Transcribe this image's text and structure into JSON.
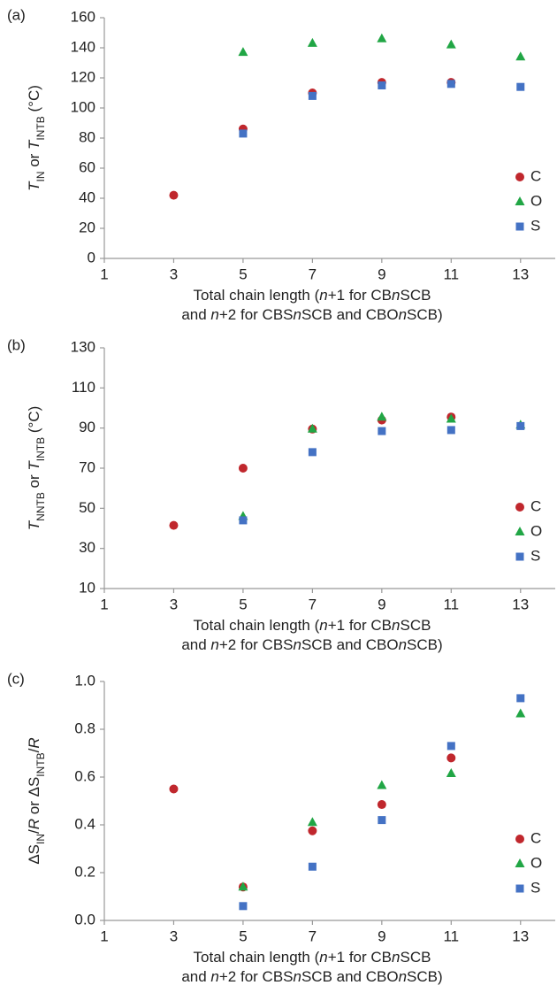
{
  "chart_data": [
    {
      "type": "scatter",
      "panel_label": "(a)",
      "ylabel": [
        {
          "text": "T",
          "style": "italic"
        },
        {
          "text": "IN",
          "style": "sub"
        },
        " or ",
        {
          "text": "T",
          "style": "italic"
        },
        {
          "text": "INTB",
          "style": "sub"
        },
        " (°C)"
      ],
      "xlabel": [
        [
          "Total chain length (",
          {
            "text": "n",
            "style": "italic"
          },
          "+1 for CB",
          {
            "text": "n",
            "style": "italic"
          },
          "SCB"
        ],
        [
          "and ",
          {
            "text": "n",
            "style": "italic"
          },
          "+2 for CBS",
          {
            "text": "n",
            "style": "italic"
          },
          "SCB and CBO",
          {
            "text": "n",
            "style": "italic"
          },
          "SCB)"
        ]
      ],
      "xlim": [
        1,
        14
      ],
      "xticks": [
        1,
        3,
        5,
        7,
        9,
        11,
        13
      ],
      "ylim": [
        0,
        160
      ],
      "yticks": [
        0,
        20,
        40,
        60,
        80,
        100,
        120,
        140,
        160
      ],
      "legend": "lower right",
      "series": [
        {
          "name": "C",
          "color": "#c0272d",
          "marker": "circle",
          "x": [
            3,
            5,
            7,
            9,
            11
          ],
          "values": [
            42,
            86,
            110,
            117,
            117
          ]
        },
        {
          "name": "O",
          "color": "#21a645",
          "marker": "triangle",
          "x": [
            5,
            7,
            9,
            11,
            13
          ],
          "values": [
            137,
            143,
            146,
            142,
            134
          ]
        },
        {
          "name": "S",
          "color": "#4472c4",
          "marker": "square",
          "x": [
            5,
            7,
            9,
            11,
            13
          ],
          "values": [
            83,
            108,
            115,
            116,
            114
          ]
        }
      ]
    },
    {
      "type": "scatter",
      "panel_label": "(b)",
      "ylabel": [
        {
          "text": "T",
          "style": "italic"
        },
        {
          "text": "NNTB",
          "style": "sub"
        },
        " or ",
        {
          "text": "T",
          "style": "italic"
        },
        {
          "text": "INTB",
          "style": "sub"
        },
        " (°C)"
      ],
      "xlabel": [
        [
          "Total chain length (",
          {
            "text": "n",
            "style": "italic"
          },
          "+1 for CB",
          {
            "text": "n",
            "style": "italic"
          },
          "SCB"
        ],
        [
          "and ",
          {
            "text": "n",
            "style": "italic"
          },
          "+2 for CBS",
          {
            "text": "n",
            "style": "italic"
          },
          "SCB and CBO",
          {
            "text": "n",
            "style": "italic"
          },
          "SCB)"
        ]
      ],
      "xlim": [
        1,
        14
      ],
      "xticks": [
        1,
        3,
        5,
        7,
        9,
        11,
        13
      ],
      "ylim": [
        10,
        130
      ],
      "yticks": [
        10,
        30,
        50,
        70,
        90,
        110,
        130
      ],
      "legend": "lower right",
      "series": [
        {
          "name": "C",
          "color": "#c0272d",
          "marker": "circle",
          "x": [
            3,
            5,
            7,
            9,
            11
          ],
          "values": [
            41.5,
            70,
            89.5,
            94,
            95.5
          ]
        },
        {
          "name": "O",
          "color": "#21a645",
          "marker": "triangle",
          "x": [
            5,
            7,
            9,
            11,
            13
          ],
          "values": [
            46,
            89.5,
            95.5,
            94.5,
            91.5
          ]
        },
        {
          "name": "S",
          "color": "#4472c4",
          "marker": "square",
          "x": [
            5,
            7,
            9,
            11,
            13
          ],
          "values": [
            44,
            78,
            88.5,
            89,
            91
          ]
        }
      ]
    },
    {
      "type": "scatter",
      "panel_label": "(c)",
      "ylabel": [
        "ΔS",
        {
          "text": "IN",
          "style": "sub"
        },
        "/",
        {
          "text": "R",
          "style": "italic"
        },
        " or ΔS",
        {
          "text": "INTB",
          "style": "sub"
        },
        "/",
        {
          "text": "R",
          "style": "italic"
        }
      ],
      "xlabel": [
        [
          "Total chain length  (",
          {
            "text": "n",
            "style": "italic"
          },
          "+1 for CB",
          {
            "text": "n",
            "style": "italic"
          },
          "SCB"
        ],
        [
          "and ",
          {
            "text": "n",
            "style": "italic"
          },
          "+2 for CBS",
          {
            "text": "n",
            "style": "italic"
          },
          "SCB and CBO",
          {
            "text": "n",
            "style": "italic"
          },
          "SCB)"
        ]
      ],
      "xlim": [
        1,
        14
      ],
      "xticks": [
        1,
        3,
        5,
        7,
        9,
        11,
        13
      ],
      "ylim": [
        0,
        1
      ],
      "yticks": [
        {
          "value": 0,
          "label": "0.0"
        },
        0.2,
        0.4,
        0.6,
        0.8,
        {
          "value": 1,
          "label": "1.0"
        }
      ],
      "legend": "lower right",
      "series": [
        {
          "name": "C",
          "color": "#c0272d",
          "marker": "circle",
          "x": [
            3,
            5,
            7,
            9,
            11
          ],
          "values": [
            0.55,
            0.14,
            0.375,
            0.485,
            0.68
          ]
        },
        {
          "name": "O",
          "color": "#21a645",
          "marker": "triangle",
          "x": [
            5,
            7,
            9,
            11,
            13
          ],
          "values": [
            0.14,
            0.41,
            0.565,
            0.615,
            0.865
          ]
        },
        {
          "name": "S",
          "color": "#4472c4",
          "marker": "square",
          "x": [
            5,
            7,
            9,
            11,
            13
          ],
          "values": [
            0.06,
            0.225,
            0.42,
            0.73,
            0.93
          ]
        }
      ]
    }
  ]
}
